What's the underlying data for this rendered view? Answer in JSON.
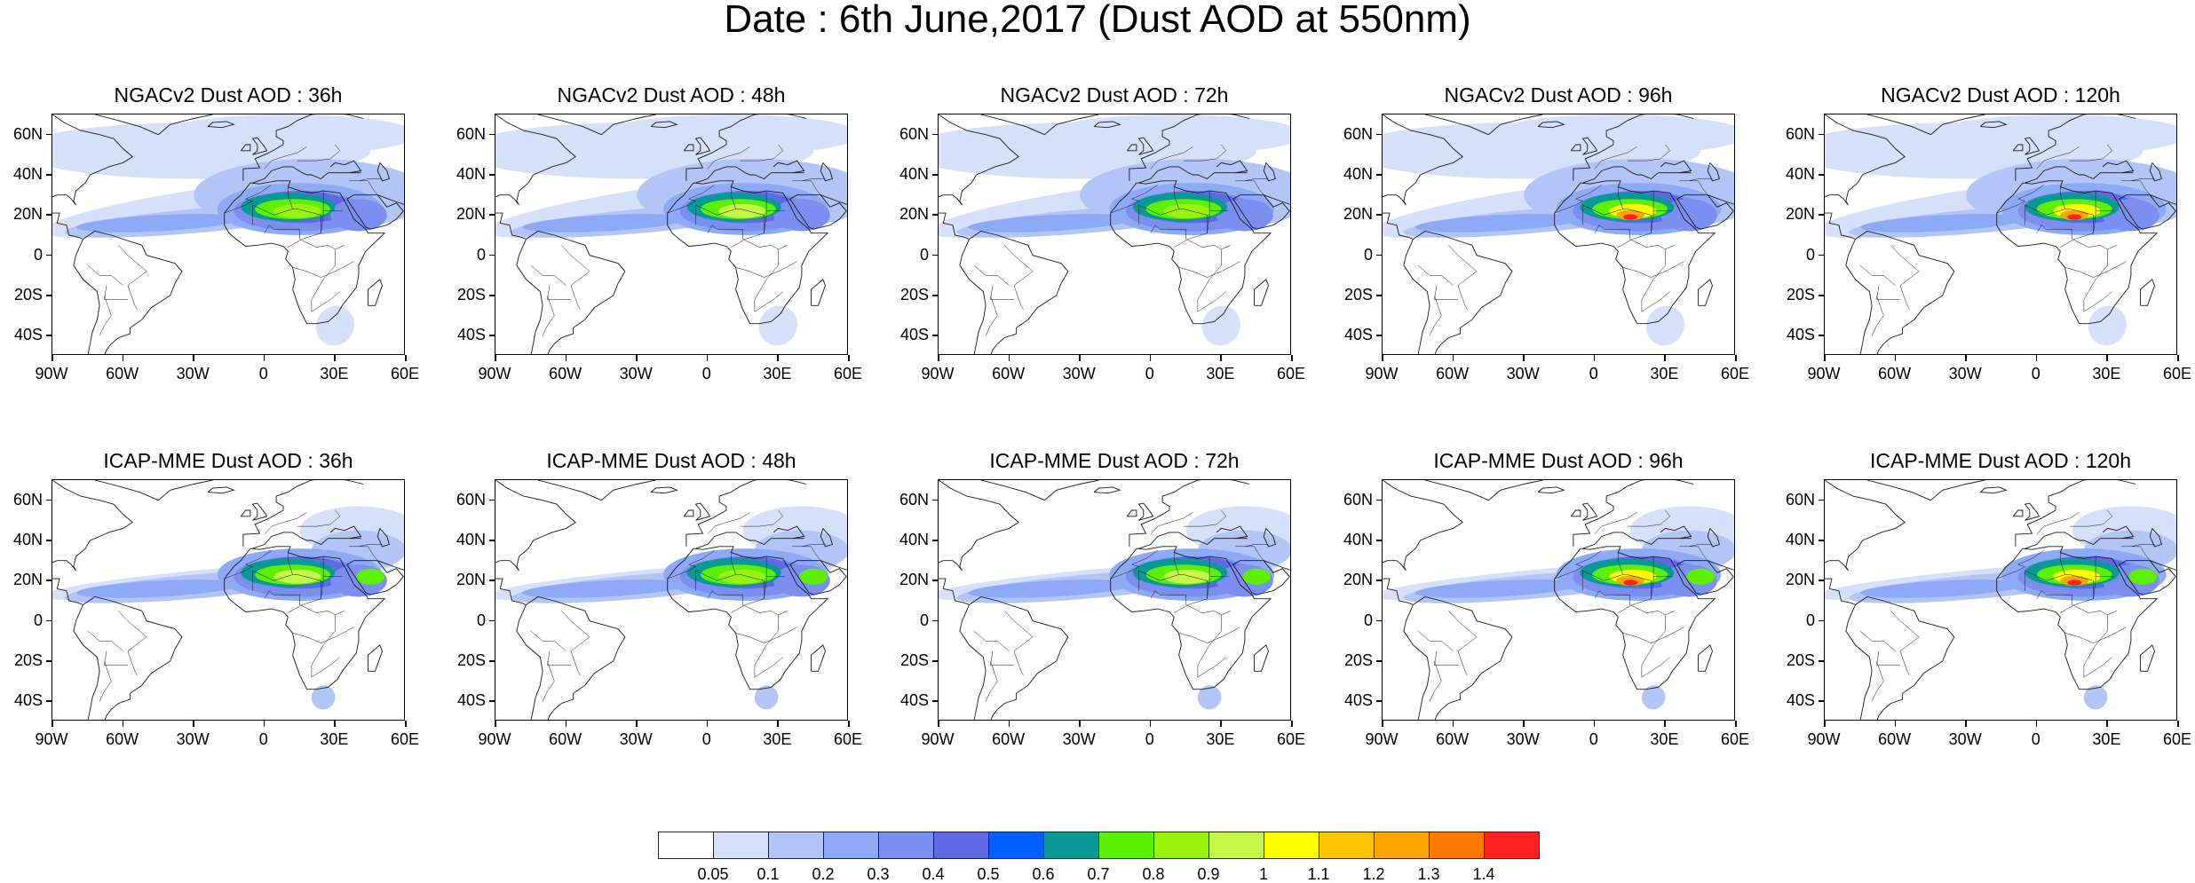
{
  "figure": {
    "title": "Date : 6th June,2017 (Dust AOD at 550nm)"
  },
  "axes": {
    "lat_labels": [
      "60N",
      "40N",
      "20N",
      "0",
      "20S",
      "40S"
    ],
    "lat_values": [
      60,
      40,
      20,
      0,
      -20,
      -40
    ],
    "lon_labels": [
      "90W",
      "60W",
      "30W",
      "0",
      "30E",
      "60E"
    ],
    "lon_values": [
      -90,
      -60,
      -30,
      0,
      30,
      60
    ],
    "lat_range": [
      -50,
      70
    ],
    "lon_range": [
      -90,
      60
    ]
  },
  "panels": [
    {
      "title": "NGACv2 Dust AOD : 36h",
      "model": "NGACv2",
      "lead_hours": 36,
      "peak_aod": 1.0
    },
    {
      "title": "NGACv2 Dust AOD : 48h",
      "model": "NGACv2",
      "lead_hours": 48,
      "peak_aod": 1.1
    },
    {
      "title": "NGACv2 Dust AOD : 72h",
      "model": "NGACv2",
      "lead_hours": 72,
      "peak_aod": 1.0
    },
    {
      "title": "NGACv2 Dust AOD : 96h",
      "model": "NGACv2",
      "lead_hours": 96,
      "peak_aod": 1.4
    },
    {
      "title": "NGACv2 Dust AOD : 120h",
      "model": "NGACv2",
      "lead_hours": 120,
      "peak_aod": 1.4
    },
    {
      "title": "ICAP-MME Dust AOD : 36h",
      "model": "ICAP-MME",
      "lead_hours": 36,
      "peak_aod": 1.1
    },
    {
      "title": "ICAP-MME Dust AOD : 48h",
      "model": "ICAP-MME",
      "lead_hours": 48,
      "peak_aod": 1.0
    },
    {
      "title": "ICAP-MME Dust AOD : 72h",
      "model": "ICAP-MME",
      "lead_hours": 72,
      "peak_aod": 1.1
    },
    {
      "title": "ICAP-MME Dust AOD : 96h",
      "model": "ICAP-MME",
      "lead_hours": 96,
      "peak_aod": 1.4
    },
    {
      "title": "ICAP-MME Dust AOD : 120h",
      "model": "ICAP-MME",
      "lead_hours": 120,
      "peak_aod": 1.4
    }
  ],
  "colorbar": {
    "labels": [
      "0.05",
      "0.1",
      "0.2",
      "0.3",
      "0.4",
      "0.5",
      "0.6",
      "0.7",
      "0.8",
      "0.9",
      "1",
      "1.1",
      "1.2",
      "1.3",
      "1.4"
    ],
    "colors": [
      "#ffffff",
      "#d6e0fb",
      "#b3c4f7",
      "#8eaaf7",
      "#7b8ff0",
      "#5f69e6",
      "#0060ff",
      "#0a9a96",
      "#5df002",
      "#99f30f",
      "#c4f747",
      "#ffff00",
      "#ffc400",
      "#ffa500",
      "#ff7800",
      "#ff1f1f"
    ]
  }
}
